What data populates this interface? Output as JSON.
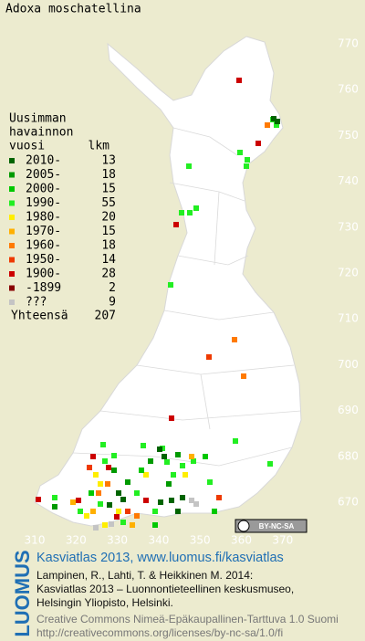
{
  "title": "Adoxa moschatellina",
  "legend": {
    "heading": [
      "Uusimman",
      "havainnon",
      "vuosi"
    ],
    "count_heading": "lkm",
    "rows": [
      {
        "label": "2010-",
        "count": 13,
        "color": "#006400"
      },
      {
        "label": "2005-",
        "count": 18,
        "color": "#009a00"
      },
      {
        "label": "2000-",
        "count": 15,
        "color": "#00c800"
      },
      {
        "label": "1990-",
        "count": 55,
        "color": "#22ee22"
      },
      {
        "label": "1980-",
        "count": 20,
        "color": "#ffee00"
      },
      {
        "label": "1970-",
        "count": 15,
        "color": "#ffb000"
      },
      {
        "label": "1960-",
        "count": 18,
        "color": "#ff7a00"
      },
      {
        "label": "1950-",
        "count": 14,
        "color": "#ee3a00"
      },
      {
        "label": "1900-",
        "count": 28,
        "color": "#cc0000"
      },
      {
        "label": "-1899",
        "count": 2,
        "color": "#880000"
      },
      {
        "label": "???",
        "count": 9,
        "color": "#c4c4c4"
      }
    ],
    "total_label": "Yhteensä",
    "total": 207
  },
  "grid": {
    "north": [
      770,
      760,
      750,
      740,
      730,
      720,
      710,
      700,
      690,
      680,
      670
    ],
    "east": [
      310,
      320,
      330,
      340,
      350,
      360,
      370
    ]
  },
  "license_badge": "BY-NC-SA",
  "footer": {
    "link": "Kasviatlas 2013, www.luomus.fi/kasviatlas",
    "citation": [
      "Lampinen, R., Lahti, T. & Heikkinen M. 2014:",
      "Kasviatlas 2013 – Luonnontieteellinen keskusmuseo,",
      "Helsingin Yliopisto, Helsinki."
    ],
    "license": [
      "Creative Commons Nimeä-Epäkaupallinen-Tarttuva 1.0 Suomi",
      "http://creativecommons.org/licenses/by-nc-sa/1.0/fi"
    ]
  },
  "brand": "LUOMUS"
}
